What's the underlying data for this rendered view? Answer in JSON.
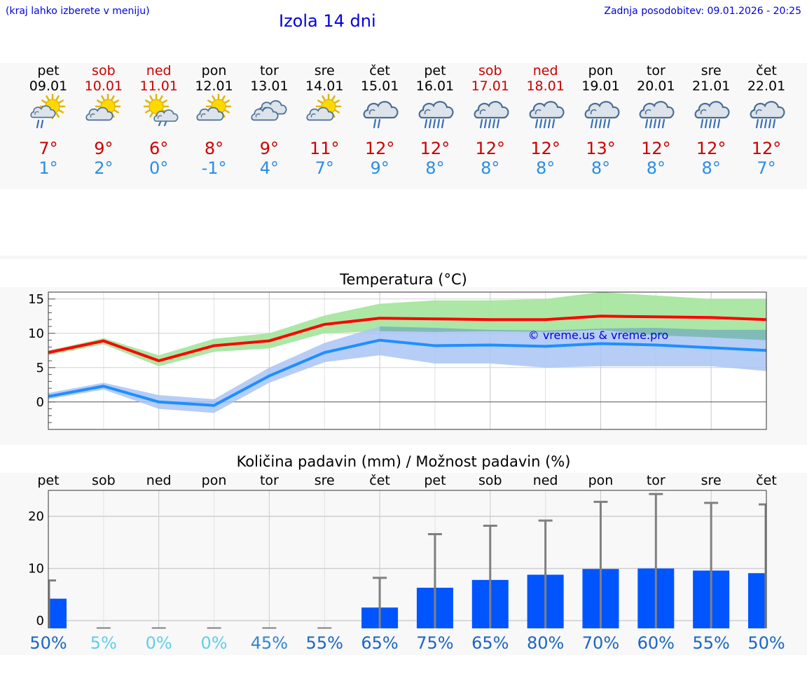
{
  "header": {
    "location_note": "(kraj lahko izberete v meniju)",
    "title": "Izola 14 dni",
    "updated": "Zadnja posodobitev: 09.01.2026 - 20:25"
  },
  "days": [
    {
      "name": "pet",
      "date": "09.01",
      "weekend": false,
      "icon": "sun-cloud-rain-icon",
      "max": "7°",
      "min": "1°"
    },
    {
      "name": "sob",
      "date": "10.01",
      "weekend": true,
      "icon": "sun-cloud-icon",
      "max": "9°",
      "min": "2°"
    },
    {
      "name": "ned",
      "date": "11.01",
      "weekend": true,
      "icon": "sun-cloud-drizzle-icon",
      "max": "6°",
      "min": "0°"
    },
    {
      "name": "pon",
      "date": "12.01",
      "weekend": false,
      "icon": "sun-cloud-icon",
      "max": "8°",
      "min": "-1°"
    },
    {
      "name": "tor",
      "date": "13.01",
      "weekend": false,
      "icon": "cloudy-icon",
      "max": "9°",
      "min": "4°"
    },
    {
      "name": "sre",
      "date": "14.01",
      "weekend": false,
      "icon": "sun-cloud-icon",
      "max": "11°",
      "min": "7°"
    },
    {
      "name": "čet",
      "date": "15.01",
      "weekend": false,
      "icon": "cloud-rain-icon",
      "max": "12°",
      "min": "9°"
    },
    {
      "name": "pet",
      "date": "16.01",
      "weekend": false,
      "icon": "cloud-heavy-rain-icon",
      "max": "12°",
      "min": "8°"
    },
    {
      "name": "sob",
      "date": "17.01",
      "weekend": true,
      "icon": "cloud-heavy-rain-icon",
      "max": "12°",
      "min": "8°"
    },
    {
      "name": "ned",
      "date": "18.01",
      "weekend": true,
      "icon": "cloud-heavy-rain-icon",
      "max": "12°",
      "min": "8°"
    },
    {
      "name": "pon",
      "date": "19.01",
      "weekend": false,
      "icon": "cloud-heavy-rain-icon",
      "max": "13°",
      "min": "8°"
    },
    {
      "name": "tor",
      "date": "20.01",
      "weekend": false,
      "icon": "cloud-heavy-rain-icon",
      "max": "12°",
      "min": "8°"
    },
    {
      "name": "sre",
      "date": "21.01",
      "weekend": false,
      "icon": "cloud-heavy-rain-icon",
      "max": "12°",
      "min": "8°"
    },
    {
      "name": "čet",
      "date": "22.01",
      "weekend": false,
      "icon": "cloud-heavy-rain-icon",
      "max": "12°",
      "min": "7°"
    }
  ],
  "colors": {
    "weekend": "#cc0000",
    "weekday": "#000000",
    "max": "#cc0000",
    "min": "#2b8de6",
    "max_line": "#ff0000",
    "max_band": "#a8e6a0",
    "min_line": "#1e8fff",
    "min_band": "#a9c4f5",
    "bar": "#0055ff",
    "error": "#808080",
    "watermark": "#0000dd"
  },
  "chart_data": [
    {
      "type": "line",
      "title": "Temperatura (°C)",
      "watermark": "© vreme.us & vreme.pro",
      "x": [
        "09.01",
        "10.01",
        "11.01",
        "12.01",
        "13.01",
        "14.01",
        "15.01",
        "16.01",
        "17.01",
        "18.01",
        "19.01",
        "20.01",
        "21.01",
        "22.01"
      ],
      "ylim": [
        -4,
        16
      ],
      "yticks": [
        0,
        5,
        10,
        15
      ],
      "series": [
        {
          "name": "max",
          "values": [
            7.2,
            8.9,
            6.0,
            8.2,
            8.9,
            11.3,
            12.2,
            12.1,
            12.0,
            12.0,
            12.5,
            12.4,
            12.3,
            12.0
          ],
          "band_low": [
            6.8,
            8.4,
            5.2,
            7.3,
            7.8,
            10.0,
            10.3,
            10.2,
            10.3,
            10.2,
            10.5,
            9.7,
            9.4,
            9.0
          ],
          "band_high": [
            7.5,
            9.3,
            6.8,
            9.2,
            10.0,
            12.6,
            14.3,
            14.8,
            14.8,
            15.0,
            16.0,
            15.5,
            15.0,
            15.0
          ]
        },
        {
          "name": "min",
          "values": [
            0.8,
            2.3,
            0.0,
            -0.5,
            3.8,
            7.2,
            9.0,
            8.2,
            8.3,
            8.1,
            8.5,
            8.3,
            7.9,
            7.5
          ],
          "band_low": [
            0.4,
            1.8,
            -1.0,
            -1.6,
            2.8,
            5.8,
            6.8,
            5.6,
            5.6,
            5.0,
            5.2,
            5.2,
            5.2,
            4.5
          ],
          "band_high": [
            1.3,
            2.8,
            1.0,
            0.4,
            5.0,
            8.6,
            11.0,
            10.8,
            10.5,
            10.4,
            10.7,
            10.8,
            10.5,
            10.5
          ]
        }
      ]
    },
    {
      "type": "bar",
      "title": "Količina padavin (mm) / Možnost padavin (%)",
      "categories": [
        "pet",
        "sob",
        "ned",
        "pon",
        "tor",
        "sre",
        "čet",
        "pet",
        "sob",
        "ned",
        "pon",
        "tor",
        "sre",
        "čet"
      ],
      "values": [
        4.2,
        0,
        0,
        0,
        0,
        0,
        2.5,
        6.3,
        7.8,
        8.8,
        9.9,
        10.0,
        9.6,
        9.1
      ],
      "error_high": [
        7.7,
        0,
        0,
        0,
        0,
        0,
        8.2,
        16.6,
        18.2,
        19.2,
        22.8,
        24.3,
        22.6,
        22.3
      ],
      "probability": [
        "50%",
        "5%",
        "0%",
        "0%",
        "45%",
        "55%",
        "65%",
        "75%",
        "65%",
        "80%",
        "70%",
        "60%",
        "55%",
        "50%"
      ],
      "prob_colors": [
        "#1a66c2",
        "#5fcfe8",
        "#5fcfe8",
        "#5fcfe8",
        "#2f86d4",
        "#1a66c2",
        "#1a66c2",
        "#1a66c2",
        "#1a66c2",
        "#1a66c2",
        "#1a66c2",
        "#1a66c2",
        "#1a66c2",
        "#1a66c2"
      ],
      "ylim": [
        -1.5,
        25
      ],
      "yticks": [
        0,
        10,
        20
      ]
    }
  ]
}
